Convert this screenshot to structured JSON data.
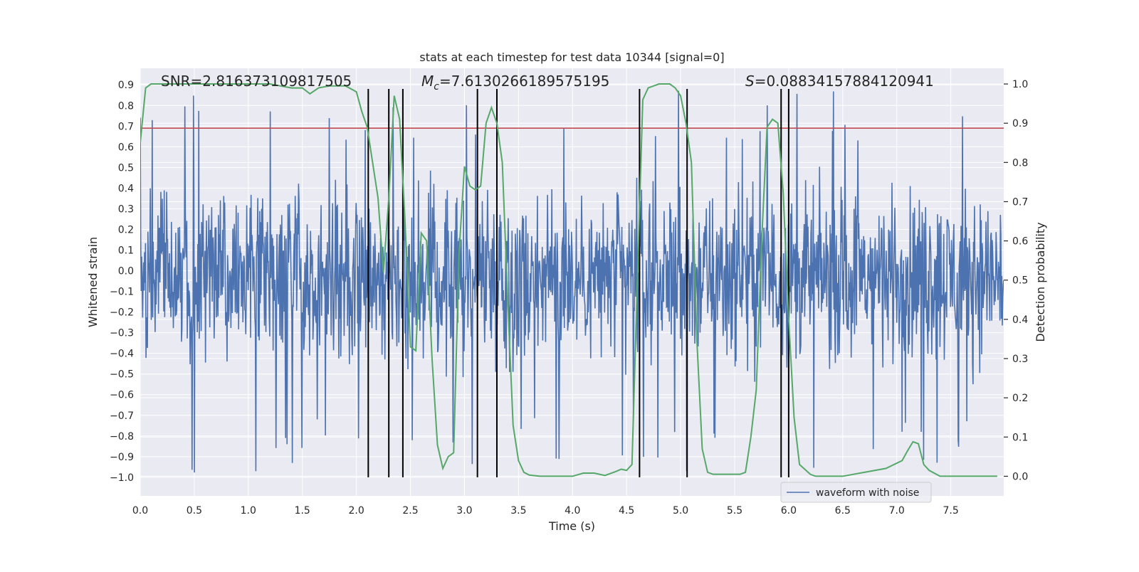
{
  "chart_data": {
    "type": "line",
    "title": "stats at each timestep for test data 10344 [signal=0]",
    "xlabel": "Time (s)",
    "ylabel_left": "Whitened strain",
    "ylabel_right": "Detection probability",
    "xlim": [
      0.0,
      7.99
    ],
    "ylim_left": [
      -1.09,
      0.98
    ],
    "ylim_right": [
      -0.05,
      1.04
    ],
    "x_ticks": [
      "0.0",
      "0.5",
      "1.0",
      "1.5",
      "2.0",
      "2.5",
      "3.0",
      "3.5",
      "4.0",
      "4.5",
      "5.0",
      "5.5",
      "6.0",
      "6.5",
      "7.0",
      "7.5"
    ],
    "y_ticks_left": [
      "−1.0",
      "−0.9",
      "−0.8",
      "−0.7",
      "−0.6",
      "−0.5",
      "−0.4",
      "−0.3",
      "−0.2",
      "−0.1",
      "0.0",
      "0.1",
      "0.2",
      "0.3",
      "0.4",
      "0.5",
      "0.6",
      "0.7",
      "0.8",
      "0.9"
    ],
    "y_ticks_right": [
      "0.0",
      "0.1",
      "0.2",
      "0.3",
      "0.4",
      "0.5",
      "0.6",
      "0.7",
      "0.8",
      "0.9",
      "1.0"
    ],
    "annotations": {
      "snr": "SNR=2.816373109817505",
      "mc_symbol": "M",
      "mc_sub": "c",
      "mc_value": "=7.6130266189575195",
      "s_symbol": "S",
      "s_value": "=0.08834157884120941"
    },
    "grid": true,
    "legend": {
      "position": "lower-right",
      "entries": [
        "waveform with noise"
      ]
    },
    "colors": {
      "waveform": "#4c72b0",
      "probability": "#55a868",
      "threshold": "#c44e52",
      "event_lines": "#000000",
      "plot_background": "#eaeaf2",
      "grid": "#ffffff"
    },
    "series": [
      {
        "name": "waveform with noise",
        "axis": "left",
        "style": "dense noise",
        "band": [
          -0.45,
          0.4
        ],
        "extremes": [
          -0.99,
          0.89
        ]
      },
      {
        "axis": "right",
        "x": [
          0.0,
          0.05,
          0.1,
          0.2,
          0.4,
          0.6,
          0.8,
          1.0,
          1.2,
          1.4,
          1.5,
          1.57,
          1.65,
          1.75,
          1.9,
          2.0,
          2.05,
          2.1,
          2.2,
          2.25,
          2.3,
          2.35,
          2.4,
          2.45,
          2.5,
          2.55,
          2.6,
          2.65,
          2.7,
          2.75,
          2.8,
          2.85,
          2.9,
          2.95,
          3.0,
          3.05,
          3.1,
          3.15,
          3.2,
          3.25,
          3.3,
          3.35,
          3.4,
          3.45,
          3.5,
          3.55,
          3.6,
          3.7,
          3.85,
          4.0,
          4.1,
          4.2,
          4.3,
          4.4,
          4.45,
          4.5,
          4.55,
          4.6,
          4.65,
          4.7,
          4.75,
          4.8,
          4.9,
          4.95,
          5.0,
          5.05,
          5.1,
          5.15,
          5.2,
          5.25,
          5.3,
          5.4,
          5.5,
          5.55,
          5.6,
          5.65,
          5.7,
          5.75,
          5.8,
          5.85,
          5.9,
          5.95,
          6.0,
          6.05,
          6.1,
          6.2,
          6.25,
          6.3,
          6.35,
          6.5,
          6.7,
          6.9,
          7.05,
          7.1,
          7.15,
          7.2,
          7.25,
          7.3,
          7.4,
          7.5,
          7.6,
          7.8,
          7.93
        ],
        "y": [
          0.85,
          0.99,
          1.0,
          1.0,
          1.0,
          1.0,
          1.0,
          1.0,
          1.0,
          0.99,
          0.99,
          0.975,
          0.99,
          0.995,
          0.995,
          0.98,
          0.93,
          0.89,
          0.71,
          0.52,
          0.71,
          0.97,
          0.91,
          0.65,
          0.33,
          0.32,
          0.62,
          0.6,
          0.3,
          0.08,
          0.02,
          0.05,
          0.06,
          0.57,
          0.79,
          0.74,
          0.73,
          0.74,
          0.9,
          0.94,
          0.9,
          0.8,
          0.45,
          0.13,
          0.04,
          0.01,
          0.003,
          0.0,
          0.0,
          0.0,
          0.008,
          0.008,
          0.002,
          0.012,
          0.018,
          0.015,
          0.03,
          0.5,
          0.96,
          0.99,
          0.995,
          1.0,
          1.0,
          0.99,
          0.97,
          0.9,
          0.8,
          0.35,
          0.07,
          0.01,
          0.005,
          0.005,
          0.005,
          0.005,
          0.01,
          0.1,
          0.22,
          0.6,
          0.89,
          0.91,
          0.9,
          0.72,
          0.4,
          0.15,
          0.03,
          0.005,
          0.0,
          0.0,
          0.0,
          0.0,
          0.01,
          0.02,
          0.04,
          0.065,
          0.088,
          0.083,
          0.03,
          0.015,
          0.0,
          0.0,
          0.0,
          0.0,
          0.0
        ]
      },
      {
        "axis": "left",
        "type": "hline",
        "y": 0.69
      },
      {
        "type": "vlines",
        "x": [
          2.11,
          2.3,
          2.43,
          3.12,
          3.3,
          4.62,
          5.06,
          5.93,
          6.0
        ],
        "y_range": [
          -1.0,
          0.88
        ]
      }
    ]
  }
}
